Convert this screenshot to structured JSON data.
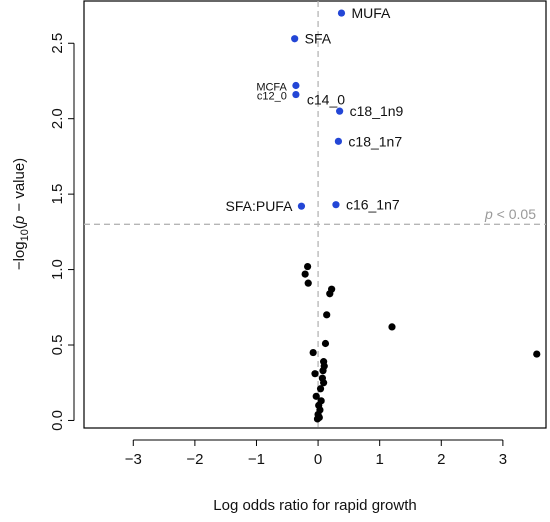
{
  "chart_data": {
    "type": "scatter",
    "title": "",
    "xlabel": "Log odds ratio for rapid growth",
    "ylabel_parts": {
      "prefix": "−log",
      "sub": "10",
      "open": "(",
      "p": "p",
      "rest": " − value)"
    },
    "xlim": [
      -3.8,
      3.7
    ],
    "ylim": [
      -0.05,
      2.78
    ],
    "xticks": [
      -3,
      -2,
      -1,
      0,
      1,
      2,
      3
    ],
    "xtick_labels": [
      "−3",
      "−2",
      "−1",
      "0",
      "1",
      "2",
      "3"
    ],
    "yticks": [
      0.0,
      0.5,
      1.0,
      1.5,
      2.0,
      2.5
    ],
    "ytick_labels": [
      "0.0",
      "0.5",
      "1.0",
      "1.5",
      "2.0",
      "2.5"
    ],
    "vline_x": 0,
    "threshold_y": 1.3,
    "threshold_label": {
      "p": "p",
      "rest": " < 0.05"
    },
    "colors": {
      "significant": "#2346d6",
      "nonsignificant": "#000000",
      "reference": "#b5b5b5"
    },
    "significant_points": [
      {
        "x": 0.38,
        "y": 2.7,
        "label": "MUFA",
        "label_side": "right",
        "small": false
      },
      {
        "x": -0.38,
        "y": 2.53,
        "label": "SFA",
        "label_side": "right",
        "small": false
      },
      {
        "x": -0.36,
        "y": 2.22,
        "label": "MCFA",
        "label_side": "left",
        "small": true
      },
      {
        "x": -0.36,
        "y": 2.16,
        "label": "c12_0",
        "label_side": "left",
        "small": true
      },
      {
        "x": -0.36,
        "y": 2.16,
        "label": "c14_0",
        "label_side": "right-low",
        "small": false
      },
      {
        "x": 0.35,
        "y": 2.05,
        "label": "c18_1n9",
        "label_side": "right",
        "small": false
      },
      {
        "x": 0.33,
        "y": 1.85,
        "label": "c18_1n7",
        "label_side": "right",
        "small": false
      },
      {
        "x": 0.29,
        "y": 1.43,
        "label": "c16_1n7",
        "label_side": "right",
        "small": false
      },
      {
        "x": -0.27,
        "y": 1.42,
        "label": "SFA:PUFA",
        "label_side": "left",
        "small": false
      }
    ],
    "other_points": [
      {
        "x": -0.17,
        "y": 1.02
      },
      {
        "x": -0.21,
        "y": 0.97
      },
      {
        "x": -0.16,
        "y": 0.91
      },
      {
        "x": 0.22,
        "y": 0.87
      },
      {
        "x": 0.19,
        "y": 0.84
      },
      {
        "x": 0.14,
        "y": 0.7
      },
      {
        "x": 1.2,
        "y": 0.62
      },
      {
        "x": 3.55,
        "y": 0.44
      },
      {
        "x": 0.12,
        "y": 0.51
      },
      {
        "x": -0.08,
        "y": 0.45
      },
      {
        "x": 0.09,
        "y": 0.39
      },
      {
        "x": 0.1,
        "y": 0.36
      },
      {
        "x": 0.08,
        "y": 0.33
      },
      {
        "x": -0.05,
        "y": 0.31
      },
      {
        "x": 0.07,
        "y": 0.28
      },
      {
        "x": 0.09,
        "y": 0.25
      },
      {
        "x": 0.04,
        "y": 0.21
      },
      {
        "x": -0.03,
        "y": 0.16
      },
      {
        "x": 0.05,
        "y": 0.13
      },
      {
        "x": 0.01,
        "y": 0.1
      },
      {
        "x": 0.03,
        "y": 0.07
      },
      {
        "x": 0.0,
        "y": 0.04
      },
      {
        "x": 0.02,
        "y": 0.02
      },
      {
        "x": -0.01,
        "y": 0.01
      }
    ]
  }
}
